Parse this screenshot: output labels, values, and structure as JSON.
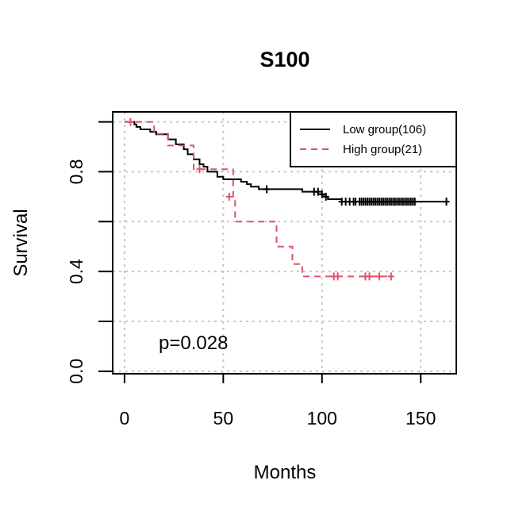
{
  "chart_data": {
    "type": "line",
    "title": "S100",
    "xlabel": "Months",
    "ylabel": "Survival",
    "xlim": [
      -6,
      168
    ],
    "ylim": [
      -0.01,
      1.04
    ],
    "x_ticks": [
      0,
      50,
      100,
      150
    ],
    "x_tick_labels": [
      "0",
      "50",
      "100",
      "150"
    ],
    "y_ticks": [
      0.0,
      0.2,
      0.4,
      0.6,
      0.8,
      1.0
    ],
    "y_tick_labels": [
      "0.0",
      "",
      "0.4",
      "",
      "0.8",
      ""
    ],
    "grid": true,
    "annotation": "p=0.028",
    "legend_position": "top-right",
    "series": [
      {
        "name": "Low group(106)",
        "color": "#000000",
        "dash": "solid",
        "steps": [
          [
            0,
            1.0
          ],
          [
            5,
            0.99
          ],
          [
            6,
            0.98
          ],
          [
            8,
            0.97
          ],
          [
            13,
            0.96
          ],
          [
            16,
            0.95
          ],
          [
            22,
            0.93
          ],
          [
            26,
            0.91
          ],
          [
            30,
            0.89
          ],
          [
            32,
            0.87
          ],
          [
            35,
            0.85
          ],
          [
            38,
            0.83
          ],
          [
            40,
            0.82
          ],
          [
            42,
            0.8
          ],
          [
            47,
            0.78
          ],
          [
            50,
            0.77
          ],
          [
            59,
            0.76
          ],
          [
            62,
            0.75
          ],
          [
            64,
            0.74
          ],
          [
            68,
            0.73
          ],
          [
            80,
            0.73
          ],
          [
            90,
            0.72
          ],
          [
            98,
            0.71
          ],
          [
            101,
            0.7
          ],
          [
            103,
            0.69
          ],
          [
            110,
            0.68
          ],
          [
            163,
            0.68
          ]
        ],
        "censors": [
          [
            72,
            0.73
          ],
          [
            96,
            0.72
          ],
          [
            98,
            0.72
          ],
          [
            100,
            0.71
          ],
          [
            102,
            0.7
          ],
          [
            110,
            0.68
          ],
          [
            112,
            0.68
          ],
          [
            114,
            0.68
          ],
          [
            116,
            0.68
          ],
          [
            117,
            0.68
          ],
          [
            119,
            0.68
          ],
          [
            120,
            0.68
          ],
          [
            121,
            0.68
          ],
          [
            122,
            0.68
          ],
          [
            123,
            0.68
          ],
          [
            124,
            0.68
          ],
          [
            125,
            0.68
          ],
          [
            126,
            0.68
          ],
          [
            127,
            0.68
          ],
          [
            128,
            0.68
          ],
          [
            129,
            0.68
          ],
          [
            130,
            0.68
          ],
          [
            131,
            0.68
          ],
          [
            132,
            0.68
          ],
          [
            133,
            0.68
          ],
          [
            134,
            0.68
          ],
          [
            135,
            0.68
          ],
          [
            136,
            0.68
          ],
          [
            137,
            0.68
          ],
          [
            138,
            0.68
          ],
          [
            139,
            0.68
          ],
          [
            140,
            0.68
          ],
          [
            141,
            0.68
          ],
          [
            142,
            0.68
          ],
          [
            143,
            0.68
          ],
          [
            144,
            0.68
          ],
          [
            145,
            0.68
          ],
          [
            146,
            0.68
          ],
          [
            147,
            0.68
          ],
          [
            163,
            0.68
          ]
        ]
      },
      {
        "name": "High group(21)",
        "color": "#DF536B",
        "dash": "dashed",
        "steps": [
          [
            0,
            1.0
          ],
          [
            15,
            0.952
          ],
          [
            22,
            0.905
          ],
          [
            35,
            0.81
          ],
          [
            55,
            0.7
          ],
          [
            56,
            0.6
          ],
          [
            72,
            0.6
          ],
          [
            77,
            0.5
          ],
          [
            85,
            0.43
          ],
          [
            90,
            0.38
          ],
          [
            135,
            0.38
          ]
        ],
        "censors": [
          [
            3,
            1.0
          ],
          [
            38,
            0.81
          ],
          [
            53,
            0.7
          ],
          [
            106,
            0.38
          ],
          [
            108,
            0.38
          ],
          [
            122,
            0.38
          ],
          [
            124,
            0.38
          ],
          [
            129,
            0.38
          ],
          [
            135,
            0.38
          ]
        ]
      }
    ]
  }
}
